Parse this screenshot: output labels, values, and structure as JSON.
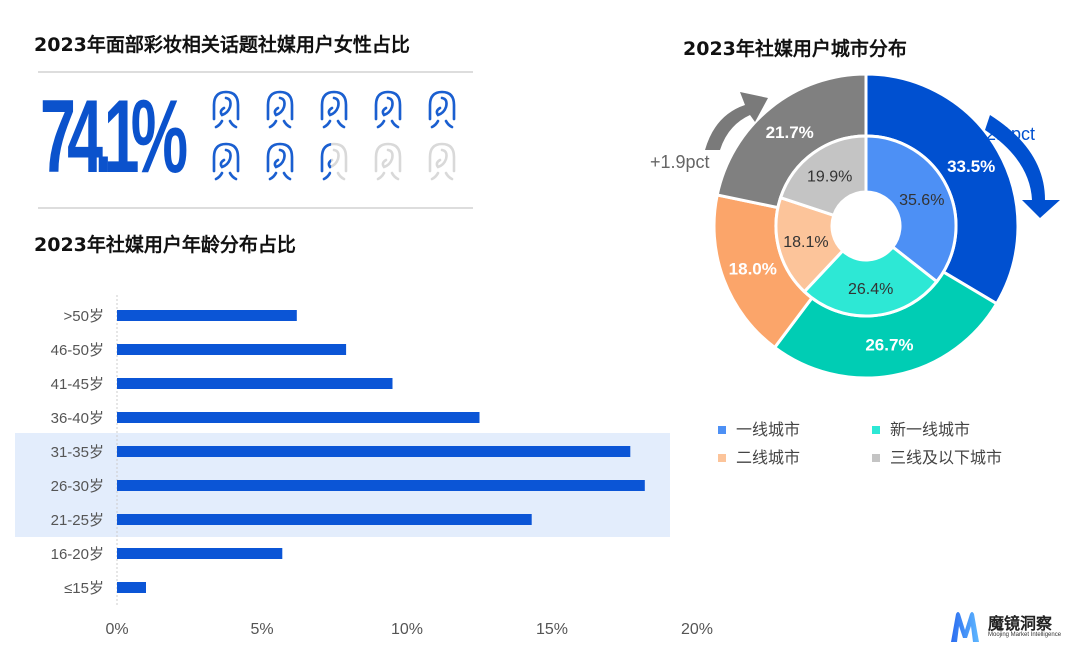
{
  "female_share": {
    "title": "2023年面部彩妆相关话题社媒用户女性占比",
    "value_text": "74.1%",
    "fraction": 0.741,
    "icon": "female-head-icon",
    "icon_count": 10
  },
  "colors": {
    "bar": "#0b55d6",
    "highlight": "#e3edfc",
    "icon_on": "#1a5fd1",
    "icon_off": "#d9d9d9",
    "tier1": "#4d90f5",
    "new_tier1": "#2de8d5",
    "tier2": "#fcc49a",
    "tier3": "#c4c4c4",
    "tier1_outer": "#0050d0",
    "new_tier1_outer": "#00cdb4",
    "tier2_outer": "#fba56a",
    "tier3_outer": "#808080"
  },
  "chart_data": [
    {
      "type": "bar",
      "orientation": "horizontal",
      "title": "2023年社媒用户年龄分布占比",
      "categories": [
        ">50岁",
        "46-50岁",
        "41-45岁",
        "36-40岁",
        "31-35岁",
        "26-30岁",
        "21-25岁",
        "16-20岁",
        "≤15岁"
      ],
      "values": [
        6.2,
        7.9,
        9.5,
        12.5,
        17.7,
        18.2,
        14.3,
        5.7,
        1.0
      ],
      "xlim": [
        0,
        20
      ],
      "xticks": [
        "0%",
        "5%",
        "10%",
        "15%",
        "20%"
      ],
      "highlighted": [
        "31-35岁",
        "26-30岁",
        "21-25岁"
      ]
    },
    {
      "type": "pie",
      "subtype": "nested-donut",
      "title": "2023年社媒用户城市分布",
      "categories": [
        "一线城市",
        "新一线城市",
        "二线城市",
        "三线及以下城市"
      ],
      "series": [
        {
          "name": "inner",
          "values": [
            35.6,
            26.4,
            18.1,
            19.9
          ],
          "labels": [
            "35.6%",
            "26.4%",
            "18.1%",
            "19.9%"
          ]
        },
        {
          "name": "outer",
          "values": [
            33.5,
            26.7,
            18.0,
            21.7
          ],
          "labels": [
            "33.5%",
            "26.7%",
            "18.0%",
            "21.7%"
          ]
        }
      ],
      "annotations": [
        "-2.1pct",
        "+1.9pct"
      ],
      "legend": "bottom"
    }
  ],
  "logo": {
    "name": "魔镜洞察",
    "tagline": "Moojing Market Intelligence"
  }
}
